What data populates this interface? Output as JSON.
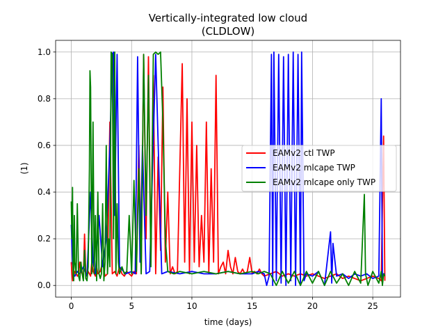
{
  "chart_data": {
    "type": "line",
    "title": "Vertically-integrated low cloud",
    "subtitle": "(CLDLOW)",
    "xlabel": "time (days)",
    "ylabel": "(1)",
    "xlim": [
      -1.3,
      27.3
    ],
    "ylim": [
      -0.05,
      1.05
    ],
    "xticks": [
      0,
      5,
      10,
      15,
      20,
      25
    ],
    "yticks": [
      0.0,
      0.2,
      0.4,
      0.6,
      0.8,
      1.0
    ],
    "xtick_labels": [
      "0",
      "5",
      "10",
      "15",
      "20",
      "25"
    ],
    "ytick_labels": [
      "0.0",
      "0.2",
      "0.4",
      "0.6",
      "0.8",
      "1.0"
    ],
    "grid": true,
    "legend_position": "center-right",
    "series": [
      {
        "name": "EAMv2 ctl TWP",
        "color": "#ff0000",
        "x": [
          0,
          0.05,
          0.1,
          0.2,
          0.3,
          0.4,
          0.5,
          0.6,
          0.7,
          0.8,
          0.9,
          1.0,
          1.1,
          1.2,
          1.3,
          1.4,
          1.5,
          1.6,
          1.7,
          1.8,
          1.9,
          2.0,
          2.1,
          2.2,
          2.4,
          2.6,
          2.8,
          3.0,
          3.2,
          3.4,
          3.6,
          3.8,
          4.0,
          4.2,
          4.4,
          4.6,
          4.8,
          5.0,
          5.2,
          5.4,
          5.6,
          5.8,
          6.0,
          6.2,
          6.4,
          6.6,
          6.8,
          7.0,
          7.2,
          7.4,
          7.6,
          7.8,
          8.0,
          8.2,
          8.4,
          8.6,
          8.8,
          9.0,
          9.2,
          9.4,
          9.6,
          9.8,
          10.0,
          10.2,
          10.4,
          10.6,
          10.8,
          11.0,
          11.2,
          11.4,
          11.6,
          11.8,
          12.0,
          12.2,
          12.4,
          12.6,
          12.8,
          13.0,
          13.2,
          13.4,
          13.6,
          13.8,
          14.0,
          14.2,
          14.4,
          14.6,
          14.8,
          15.0,
          15.2,
          15.4,
          15.6,
          15.8,
          16.0,
          16.5,
          17.0,
          17.5,
          18.0,
          18.5,
          19.0,
          19.5,
          20.0,
          20.5,
          21.0,
          21.5,
          22.0,
          22.5,
          23.0,
          23.5,
          24.0,
          24.5,
          25.0,
          25.5,
          25.7,
          25.8,
          25.9,
          26.0
        ],
        "y": [
          0.1,
          0.05,
          0.02,
          0.04,
          0.06,
          0.05,
          0.04,
          0.05,
          0.1,
          0.06,
          0.05,
          0.03,
          0.22,
          0.05,
          0.04,
          0.06,
          0.05,
          0.04,
          0.1,
          0.06,
          0.05,
          0.04,
          0.08,
          0.05,
          0.06,
          0.1,
          0.04,
          0.05,
          0.7,
          0.05,
          0.06,
          0.04,
          0.08,
          0.05,
          0.04,
          0.06,
          0.05,
          0.04,
          0.06,
          0.05,
          0.6,
          0.05,
          0.99,
          0.2,
          0.98,
          0.1,
          0.9,
          0.05,
          0.55,
          0.15,
          0.85,
          0.1,
          0.4,
          0.05,
          0.08,
          0.05,
          0.06,
          0.5,
          0.95,
          0.1,
          0.8,
          0.05,
          0.7,
          0.1,
          0.6,
          0.08,
          0.3,
          0.1,
          0.7,
          0.05,
          0.5,
          0.1,
          0.9,
          0.05,
          0.08,
          0.1,
          0.05,
          0.15,
          0.08,
          0.05,
          0.12,
          0.06,
          0.05,
          0.07,
          0.05,
          0.06,
          0.12,
          0.05,
          0.06,
          0.05,
          0.07,
          0.05,
          0.04,
          0.05,
          0.06,
          0.04,
          0.05,
          0.04,
          0.05,
          0.04,
          0.05,
          0.04,
          0.03,
          0.04,
          0.05,
          0.03,
          0.04,
          0.03,
          0.02,
          0.03,
          0.04,
          0.03,
          0.02,
          0.35,
          0.64,
          0.02
        ]
      },
      {
        "name": "EAMv2 mlcape TWP",
        "color": "#0000ff",
        "x": [
          0,
          0.1,
          0.2,
          0.3,
          0.5,
          0.7,
          1.0,
          1.3,
          1.6,
          1.8,
          2.0,
          2.3,
          2.6,
          2.9,
          3.2,
          3.4,
          3.5,
          3.6,
          3.8,
          4.0,
          4.5,
          5.0,
          5.3,
          5.5,
          5.7,
          5.9,
          6.2,
          6.5,
          7.0,
          7.5,
          8.0,
          9.0,
          10.0,
          11.0,
          12.0,
          13.0,
          14.0,
          15.0,
          15.5,
          16.0,
          16.2,
          16.4,
          16.6,
          16.7,
          16.8,
          17.0,
          17.2,
          17.4,
          17.6,
          17.8,
          18.0,
          18.2,
          18.4,
          18.6,
          18.8,
          19.0,
          19.1,
          19.3,
          19.5,
          20.0,
          20.5,
          21.0,
          21.5,
          21.6,
          21.7,
          22.0,
          22.5,
          23.0,
          23.5,
          24.0,
          24.5,
          25.0,
          25.5,
          25.7,
          25.8,
          25.9,
          26.0
        ],
        "y": [
          0.26,
          0.1,
          0.05,
          0.04,
          0.06,
          0.05,
          0.08,
          0.04,
          0.4,
          0.1,
          0.05,
          0.3,
          0.08,
          0.2,
          0.6,
          0.99,
          1.0,
          0.3,
          0.99,
          0.08,
          0.05,
          0.06,
          0.05,
          0.98,
          0.1,
          0.6,
          0.05,
          0.06,
          0.99,
          0.05,
          0.06,
          0.05,
          0.06,
          0.05,
          0.05,
          0.06,
          0.05,
          0.05,
          0.06,
          0.05,
          0.0,
          0.04,
          0.99,
          0.0,
          1.0,
          0.02,
          0.99,
          0.01,
          0.98,
          0.0,
          0.99,
          0.02,
          1.0,
          0.0,
          0.99,
          0.0,
          1.0,
          0.02,
          0.05,
          0.04,
          0.06,
          0.0,
          0.23,
          0.01,
          0.18,
          0.04,
          0.05,
          0.03,
          0.05,
          0.04,
          0.05,
          0.03,
          0.04,
          0.8,
          0.02,
          0.05,
          0.05
        ]
      },
      {
        "name": "EAMv2 mlcape only TWP",
        "color": "#008000",
        "x": [
          0,
          0.05,
          0.1,
          0.15,
          0.2,
          0.25,
          0.3,
          0.4,
          0.5,
          0.6,
          0.7,
          0.8,
          0.9,
          1.0,
          1.1,
          1.2,
          1.3,
          1.4,
          1.5,
          1.55,
          1.6,
          1.7,
          1.8,
          1.9,
          2.0,
          2.1,
          2.2,
          2.3,
          2.4,
          2.5,
          2.6,
          2.7,
          2.8,
          2.9,
          3.0,
          3.1,
          3.2,
          3.3,
          3.4,
          3.5,
          3.6,
          3.7,
          3.8,
          3.9,
          4.0,
          4.2,
          4.4,
          4.6,
          4.8,
          5.0,
          5.2,
          5.4,
          5.6,
          5.8,
          6.0,
          6.2,
          6.4,
          6.6,
          6.8,
          7.0,
          7.2,
          7.4,
          7.6,
          7.8,
          8.0,
          8.5,
          9.0,
          10.0,
          11.0,
          12.0,
          13.0,
          14.0,
          15.0,
          15.5,
          16.0,
          16.5,
          17.0,
          17.5,
          18.0,
          18.5,
          19.0,
          19.5,
          20.0,
          20.5,
          21.0,
          21.5,
          22.0,
          22.5,
          23.0,
          23.5,
          24.0,
          24.3,
          24.4,
          24.6,
          25.0,
          25.5,
          25.7,
          25.8,
          25.9,
          26.0
        ],
        "y": [
          0.36,
          0.2,
          0.42,
          0.05,
          0.02,
          0.3,
          0.1,
          0.05,
          0.35,
          0.04,
          0.02,
          0.1,
          0.05,
          0.02,
          0.15,
          0.03,
          0.02,
          0.08,
          0.5,
          0.92,
          0.85,
          0.05,
          0.7,
          0.05,
          0.3,
          0.02,
          0.4,
          0.05,
          0.03,
          0.05,
          0.35,
          0.02,
          0.1,
          0.6,
          0.05,
          0.2,
          0.08,
          1.0,
          0.99,
          0.2,
          1.0,
          0.05,
          0.35,
          0.1,
          0.05,
          0.08,
          0.05,
          0.06,
          0.3,
          0.05,
          0.45,
          0.06,
          0.5,
          0.05,
          0.99,
          0.3,
          0.9,
          0.08,
          0.99,
          1.0,
          0.99,
          1.0,
          0.7,
          0.2,
          0.06,
          0.05,
          0.06,
          0.05,
          0.06,
          0.05,
          0.06,
          0.05,
          0.06,
          0.05,
          0.06,
          0.05,
          0.0,
          0.06,
          0.01,
          0.06,
          0.0,
          0.06,
          0.01,
          0.06,
          0.0,
          0.06,
          0.01,
          0.05,
          0.0,
          0.06,
          0.01,
          0.39,
          0.05,
          0.0,
          0.06,
          0.01,
          0.06,
          0.0,
          0.05,
          0.04
        ]
      }
    ]
  }
}
